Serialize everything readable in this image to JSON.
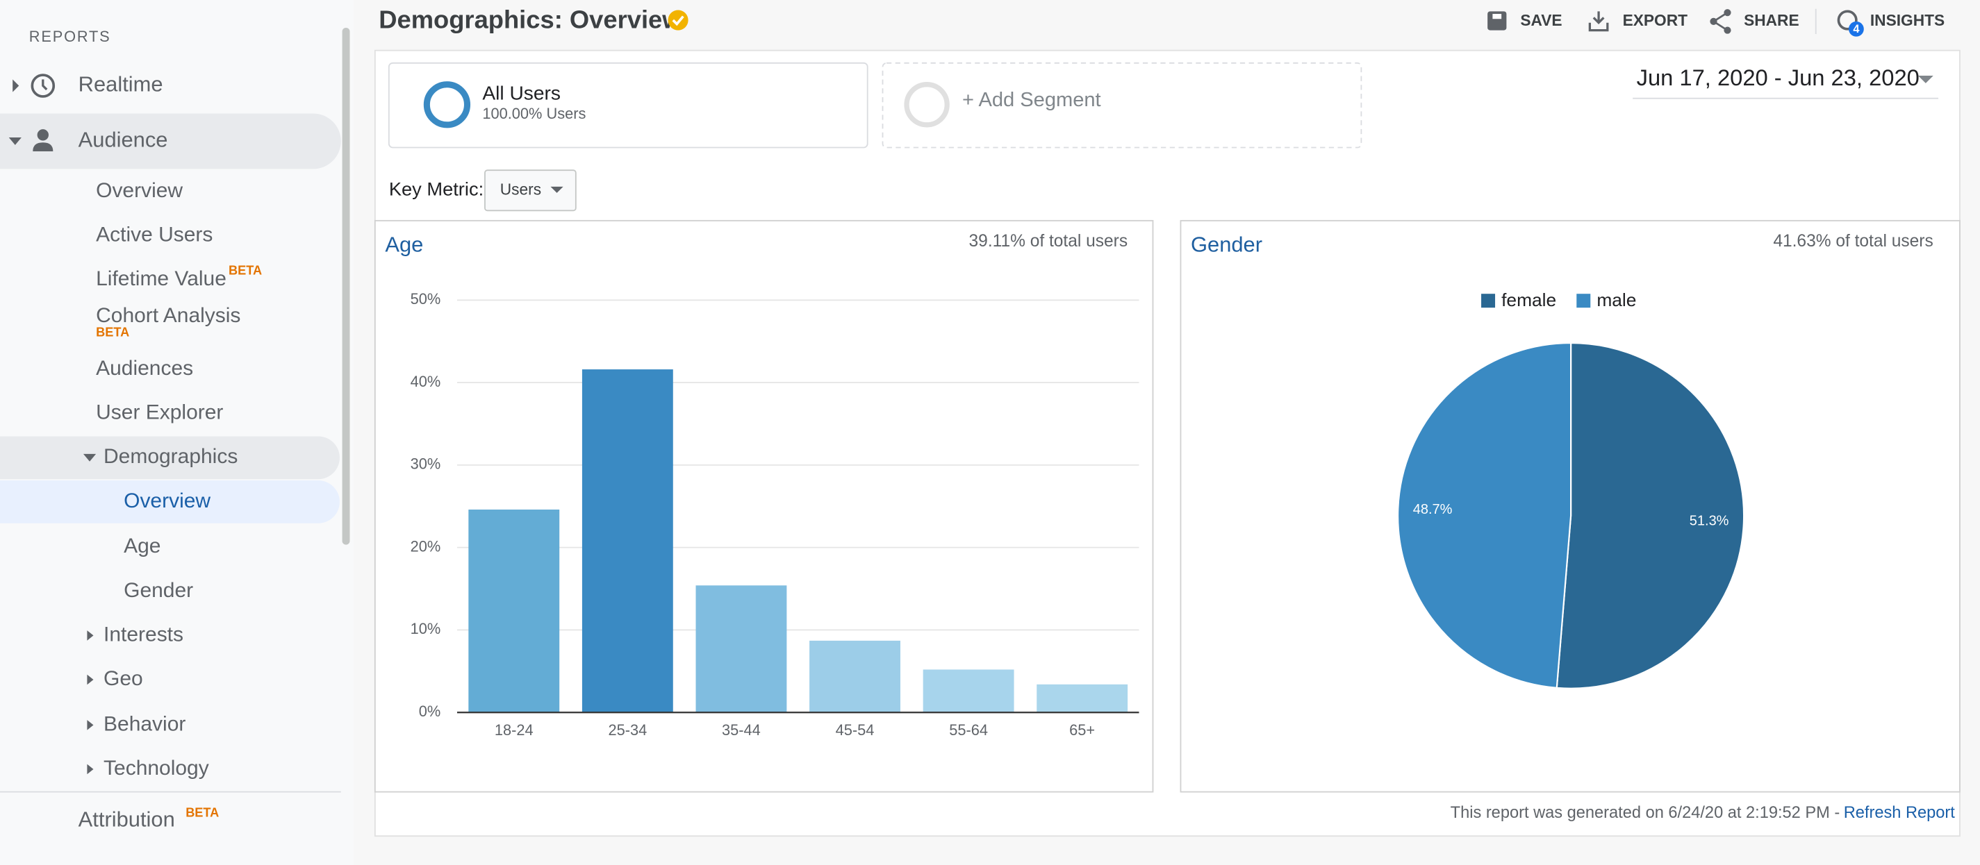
{
  "sidebar": {
    "heading": "REPORTS",
    "items": [
      {
        "label": "Realtime"
      },
      {
        "label": "Audience"
      },
      {
        "label": "Overview"
      },
      {
        "label": "Active Users"
      },
      {
        "label": "Lifetime Value",
        "badge": "BETA"
      },
      {
        "label": "Cohort Analysis",
        "badge": "BETA"
      },
      {
        "label": "Audiences"
      },
      {
        "label": "User Explorer"
      },
      {
        "label": "Demographics"
      },
      {
        "label": "Overview"
      },
      {
        "label": "Age"
      },
      {
        "label": "Gender"
      },
      {
        "label": "Interests"
      },
      {
        "label": "Geo"
      },
      {
        "label": "Behavior"
      },
      {
        "label": "Technology"
      },
      {
        "label": "Attribution",
        "badge": "BETA"
      }
    ]
  },
  "header": {
    "title": "Demographics: Overview",
    "actions": [
      "SAVE",
      "EXPORT",
      "SHARE",
      "INSIGHTS"
    ],
    "insights_badge": "4"
  },
  "segments": {
    "active": {
      "name": "All Users",
      "detail": "100.00% Users"
    },
    "add": "+ Add Segment"
  },
  "date_range": "Jun 17, 2020 - Jun 23, 2020",
  "key_metric": {
    "label": "Key Metric:",
    "value": "Users"
  },
  "chart_data": [
    {
      "type": "bar",
      "title": "Age",
      "subtitle": "39.11% of total users",
      "categories": [
        "18-24",
        "25-34",
        "35-44",
        "45-54",
        "55-64",
        "65+"
      ],
      "values": [
        24.6,
        41.6,
        15.4,
        8.7,
        5.2,
        3.4
      ],
      "colors": [
        "#63acd5",
        "#3a8ac3",
        "#80bde0",
        "#9ccde8",
        "#a7d4ec",
        "#aad6ec"
      ],
      "ylim": [
        0,
        50
      ],
      "yticks": [
        {
          "value": 0,
          "label": "0%"
        },
        {
          "value": 10,
          "label": "10%"
        },
        {
          "value": 20,
          "label": "20%"
        },
        {
          "value": 30,
          "label": "30%"
        },
        {
          "value": 40,
          "label": "40%"
        },
        {
          "value": 50,
          "label": "50%"
        }
      ],
      "grid": true
    },
    {
      "type": "pie",
      "title": "Gender",
      "subtitle": "41.63% of total users",
      "categories": [
        "female",
        "male"
      ],
      "values": [
        51.3,
        48.7
      ],
      "value_labels": [
        "51.3%",
        "48.7%"
      ],
      "colors": [
        "#2a6893",
        "#3a8ac3"
      ],
      "legend": "top"
    }
  ],
  "footer": {
    "text": "This report was generated on 6/24/20 at 2:19:52 PM -",
    "link": "Refresh Report"
  }
}
